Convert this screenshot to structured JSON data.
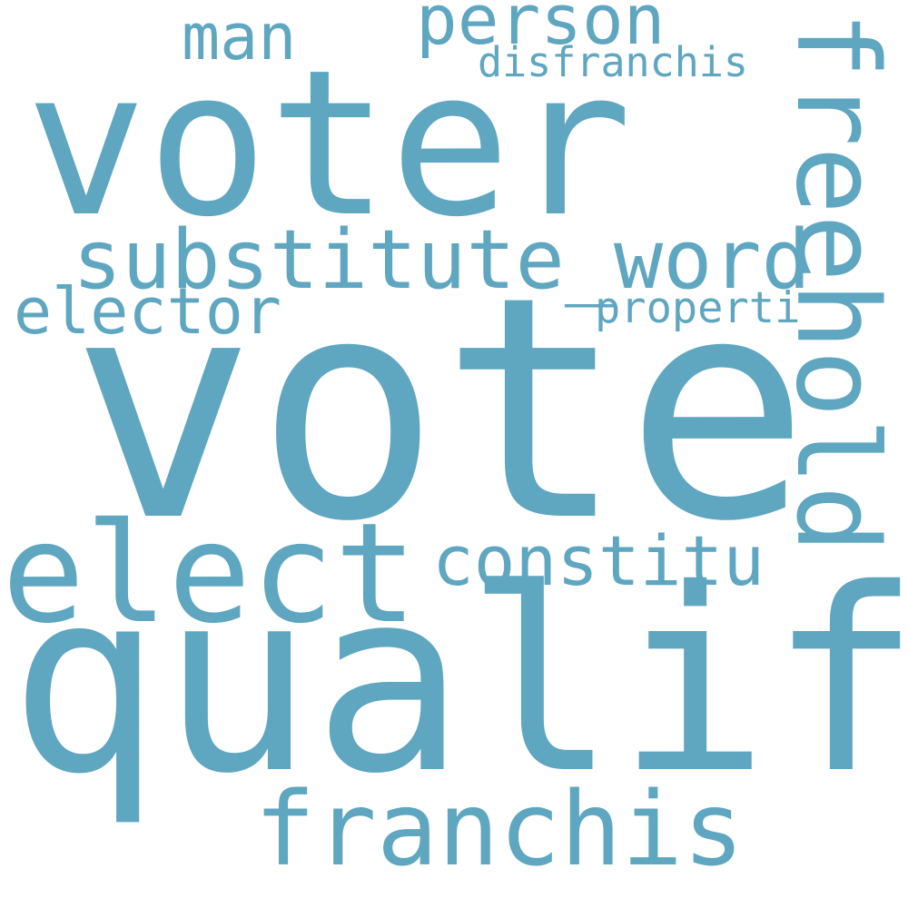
{
  "cloud": {
    "color": "#5fa6c0",
    "background": "#ffffff",
    "words": [
      {
        "key": "qualif",
        "text": "qualif"
      },
      {
        "key": "vote",
        "text": "vote"
      },
      {
        "key": "voter",
        "text": "voter"
      },
      {
        "key": "elect",
        "text": "elect"
      },
      {
        "key": "freehold",
        "text": "freehold"
      },
      {
        "key": "franchis",
        "text": "franchis"
      },
      {
        "key": "substitute_word",
        "text": "substitute_word"
      },
      {
        "key": "constitu",
        "text": "constitu"
      },
      {
        "key": "elector",
        "text": "elector"
      },
      {
        "key": "person",
        "text": "person"
      },
      {
        "key": "man",
        "text": "man"
      },
      {
        "key": "disfranchis",
        "text": "disfranchis"
      },
      {
        "key": "properti",
        "text": "properti"
      }
    ]
  }
}
